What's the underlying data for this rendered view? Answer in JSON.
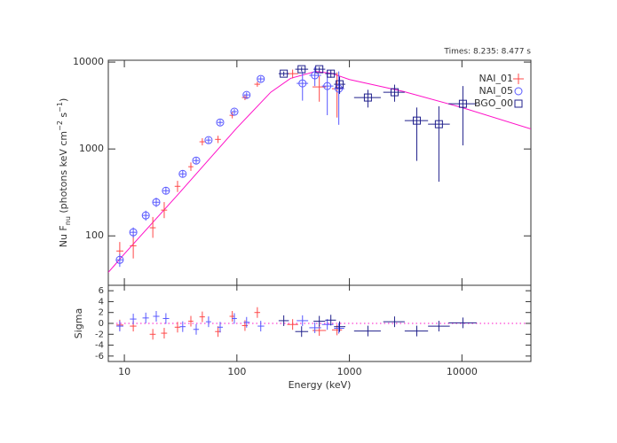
{
  "chart_data": {
    "type": "spectrum",
    "annotation": "Times: 8.235: 8.477 s",
    "ylabel": {
      "main": "Nu F",
      "sub": "nu",
      "mid": " (photons keV cm",
      "sup1": "−2",
      "mid2": " s",
      "sup2": "−1",
      "end": ")"
    },
    "xlabel": "Energy (keV)",
    "sigma_label": "Sigma",
    "log_x": true,
    "log_y": true,
    "xlim": [
      7.2,
      41000
    ],
    "ylim": [
      27,
      10500
    ],
    "xticks": [
      10,
      100,
      1000,
      10000
    ],
    "yticks": [
      100,
      1000,
      10000
    ],
    "sigma_ylim": [
      -7,
      7
    ],
    "sigma_yticks": [
      -6,
      -4,
      -2,
      0,
      2,
      4,
      6
    ],
    "legend": "upper right",
    "model": {
      "color": "#ff10c8",
      "x": [
        7.2,
        10,
        30,
        100,
        200,
        300,
        500,
        700,
        1000,
        3000,
        10000,
        41000
      ],
      "values": [
        38,
        62,
        300,
        1750,
        4500,
        6500,
        7800,
        7400,
        6300,
        4600,
        3000,
        1700
      ]
    },
    "series": [
      {
        "name": "NAI_01",
        "color": "#ff4848",
        "marker": "plus",
        "x": [
          9.1,
          12,
          17.9,
          22.6,
          29.7,
          39,
          49.3,
          68,
          91,
          118,
          152,
          313,
          540,
          776
        ],
        "x_lo": [
          8.5,
          11.2,
          16.8,
          21.2,
          28,
          37,
          46.5,
          64,
          86,
          111,
          143,
          280,
          470,
          700
        ],
        "x_hi": [
          9.8,
          12.8,
          19,
          24,
          31.5,
          41,
          52,
          72,
          96,
          125,
          161,
          350,
          620,
          860
        ],
        "values": [
          67,
          77,
          124,
          198,
          372,
          625,
          1210,
          1290,
          2440,
          3910,
          5560,
          7360,
          5180,
          4940
        ],
        "y_lo": [
          52,
          55,
          95,
          160,
          320,
          560,
          1100,
          1170,
          2250,
          3650,
          5200,
          6500,
          3500,
          2300
        ],
        "y_hi": [
          85,
          105,
          165,
          245,
          430,
          700,
          1330,
          1420,
          2650,
          4190,
          5950,
          8200,
          6900,
          7600
        ],
        "residuals": [
          -0.3,
          -0.5,
          -2.0,
          -1.8,
          -0.7,
          0.4,
          1.2,
          -1.5,
          1.3,
          -0.4,
          2.0,
          -0.2,
          -1.3,
          -1.2
        ]
      },
      {
        "name": "NAI_05",
        "color": "#5858ff",
        "marker": "circle",
        "x": [
          9.1,
          12.0,
          15.5,
          19.2,
          23.4,
          33,
          43.5,
          56,
          71,
          95,
          122,
          163,
          383,
          493,
          636,
          805
        ],
        "x_lo": [
          8.5,
          11.2,
          14.5,
          18,
          22,
          31,
          41,
          53,
          67,
          90,
          115,
          153,
          340,
          440,
          570,
          730
        ],
        "x_hi": [
          9.8,
          12.8,
          16.5,
          20.5,
          25,
          35,
          46,
          59,
          75,
          100,
          130,
          175,
          430,
          560,
          720,
          900
        ],
        "values": [
          53,
          110,
          172,
          244,
          331,
          517,
          736,
          1265,
          2020,
          2690,
          4190,
          6400,
          5690,
          7040,
          5300,
          4940
        ],
        "y_lo": [
          44,
          95,
          150,
          215,
          300,
          470,
          680,
          1170,
          1880,
          2500,
          3900,
          5950,
          3600,
          5300,
          2450,
          1900
        ],
        "y_hi": [
          62,
          125,
          195,
          275,
          365,
          565,
          795,
          1360,
          2170,
          2880,
          4480,
          6850,
          7800,
          8800,
          8000,
          7800
        ],
        "residuals": [
          -0.5,
          0.8,
          1.0,
          1.3,
          0.9,
          -0.6,
          -1.1,
          0.3,
          -0.7,
          0.9,
          0.2,
          -0.5,
          0.5,
          -0.8,
          -0.2,
          -0.9
        ]
      },
      {
        "name": "BGO_00",
        "color": "#20208c",
        "marker": "square",
        "x": [
          261,
          376,
          540,
          684,
          818,
          1460,
          2520,
          3970,
          6240,
          10200
        ],
        "x_lo": [
          235,
          330,
          480,
          610,
          730,
          1100,
          2000,
          3100,
          5000,
          7600
        ],
        "x_hi": [
          290,
          430,
          610,
          760,
          920,
          1900,
          3100,
          5000,
          7800,
          13500
        ],
        "values": [
          7360,
          8280,
          8280,
          7360,
          5560,
          3910,
          4500,
          2120,
          1930,
          3310
        ],
        "y_lo": [
          6900,
          7800,
          7700,
          6600,
          4300,
          3000,
          3500,
          730,
          420,
          1100
        ],
        "y_hi": [
          7800,
          8800,
          8800,
          8100,
          6800,
          4800,
          5500,
          3000,
          3100,
          5300
        ],
        "residuals": [
          0.5,
          -1.5,
          0.4,
          0.6,
          -0.6,
          -1.4,
          0.3,
          -1.4,
          -0.5,
          0.1
        ]
      }
    ]
  }
}
